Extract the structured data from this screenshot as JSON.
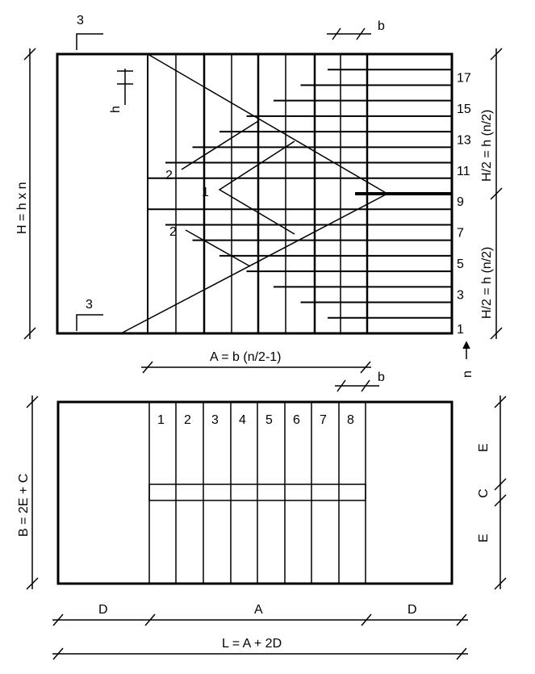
{
  "section": {
    "riser_numbers": [
      "1",
      "3",
      "5",
      "7",
      "9",
      "11",
      "13",
      "15",
      "17"
    ],
    "label_1": "1",
    "label_2a": "2",
    "label_2b": "2",
    "section_mark_top": "3",
    "section_mark_bottom": "3",
    "dim_height_total": "H = h x n",
    "dim_half_upper": "H/2 = h (n/2)",
    "dim_half_lower": "H/2 = h (n/2)",
    "dim_riser": "h",
    "dim_tread_top": "b",
    "dim_flight_length": "A = b (n/2-1)",
    "dim_tread": "b",
    "axis_n": "n"
  },
  "plan": {
    "tread_numbers": [
      "1",
      "2",
      "3",
      "4",
      "5",
      "6",
      "7",
      "8"
    ],
    "dim_width": "B = 2E + C",
    "dim_e_top": "E",
    "dim_c": "C",
    "dim_e_bottom": "E",
    "dim_d_left": "D",
    "dim_a": "A",
    "dim_d_right": "D",
    "dim_total_length": "L = A + 2D"
  }
}
